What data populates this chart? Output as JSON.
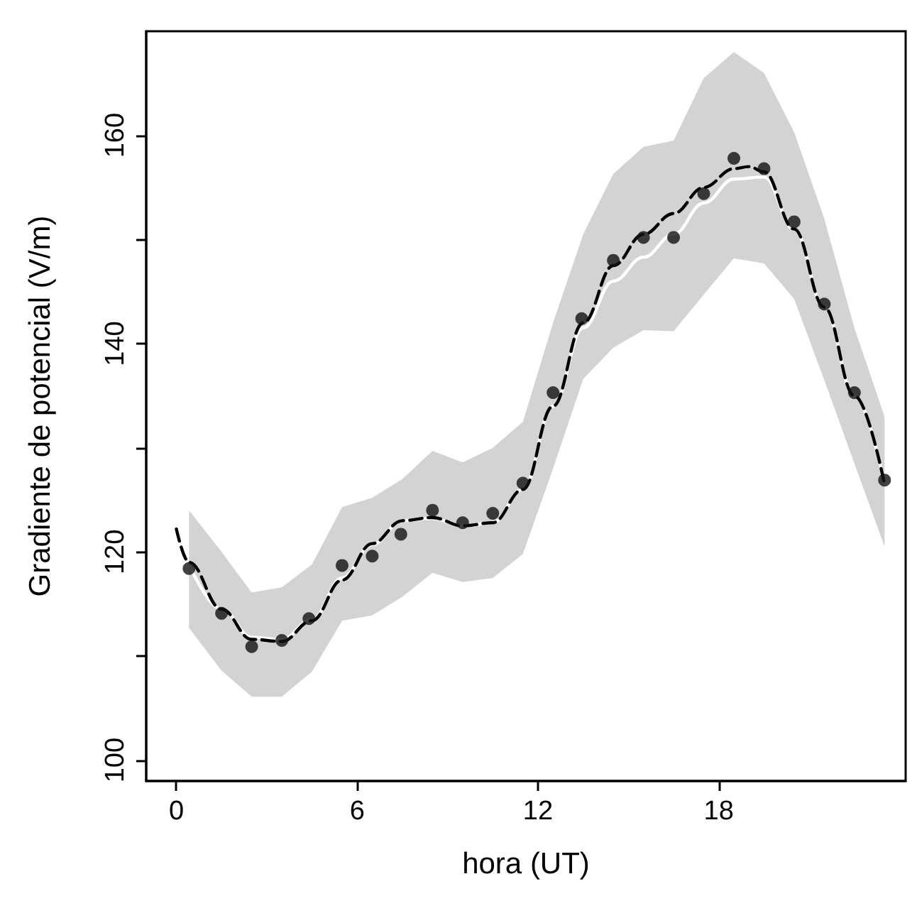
{
  "chart_data": {
    "type": "scatter",
    "xlabel": "hora (UT)",
    "ylabel": "Gradiente de potencial (V/m)",
    "xlim": [
      -1,
      24.2
    ],
    "xticks": [
      0,
      6,
      12,
      18
    ],
    "ylim": [
      98,
      170
    ],
    "yticks": [
      100,
      {
        "value": 110,
        "label": null
      },
      120,
      {
        "value": 130,
        "label": null
      },
      140,
      {
        "value": 150,
        "label": null
      },
      160
    ],
    "grid": false,
    "series": [
      {
        "type": "line",
        "color": "#ffffff",
        "line_style": "solid",
        "marker": "none",
        "x": [
          0.42,
          1.5,
          2.5,
          3.5,
          4.5,
          5.5,
          6.5,
          7.5,
          8.5,
          9.5,
          10.5,
          11.5,
          12.5,
          13.5,
          14.5,
          15.5,
          16.5,
          17.5,
          18.5,
          19.5,
          20.5,
          21.5,
          22.5,
          23.5
        ],
        "values": [
          118.8,
          114.5,
          111.8,
          111.6,
          113.5,
          117.5,
          120.7,
          123.0,
          123.2,
          122.5,
          122.8,
          126,
          134,
          141.5,
          146,
          148.3,
          150.5,
          153.5,
          155.8,
          156,
          151,
          143.5,
          135,
          126.5
        ],
        "lower": [
          112.7,
          108.6,
          106.1,
          106.1,
          108.5,
          113.4,
          113.9,
          115.7,
          118.0,
          117.1,
          117.5,
          119.8,
          128,
          136.6,
          139.6,
          141.3,
          141.2,
          144.7,
          148.2,
          147.7,
          144.3,
          136.5,
          128.5,
          120.5
        ],
        "upper": [
          124.0,
          120,
          116.1,
          116.6,
          118.8,
          124.3,
          125.2,
          127.0,
          129.7,
          128.6,
          130.0,
          132.5,
          142,
          150.5,
          156.3,
          158.9,
          159.5,
          165.5,
          168,
          166,
          160.3,
          152,
          141.5,
          133
        ]
      },
      {
        "type": "line",
        "color": "#000000",
        "line_style": "dashed",
        "marker": "none",
        "x": [
          0,
          0.42,
          1.5,
          2.5,
          3.5,
          4.5,
          5.5,
          6.5,
          7.5,
          8.5,
          9.5,
          10.5,
          11.5,
          12.5,
          13.5,
          14.5,
          15.5,
          16.5,
          17.5,
          18.5,
          19,
          19.5,
          20.5,
          21.5,
          22.5,
          23.5
        ],
        "values": [
          122.2,
          119,
          114.5,
          111.6,
          111.4,
          113.4,
          117.3,
          120.8,
          123,
          123.3,
          122.5,
          122.8,
          126,
          134,
          142,
          147.5,
          150.5,
          152.5,
          155,
          156.8,
          157,
          156.5,
          151,
          143.5,
          135,
          126.5
        ]
      },
      {
        "color": "#111111",
        "marker": "circle",
        "x": [
          0.42,
          1.5,
          2.5,
          3.5,
          4.4,
          5.5,
          6.5,
          7.45,
          8.5,
          9.5,
          10.5,
          11.5,
          12.5,
          13.45,
          14.5,
          15.5,
          16.5,
          17.5,
          18.5,
          19.5,
          20.5,
          21.5,
          22.5,
          23.5
        ],
        "values": [
          118.4,
          114.1,
          110.9,
          111.5,
          113.6,
          118.7,
          119.6,
          121.7,
          124.0,
          122.8,
          123.7,
          126.6,
          135.3,
          142.4,
          148.0,
          150.2,
          150.2,
          154.4,
          157.8,
          156.8,
          151.7,
          143.8,
          135.3,
          126.9
        ]
      }
    ]
  }
}
